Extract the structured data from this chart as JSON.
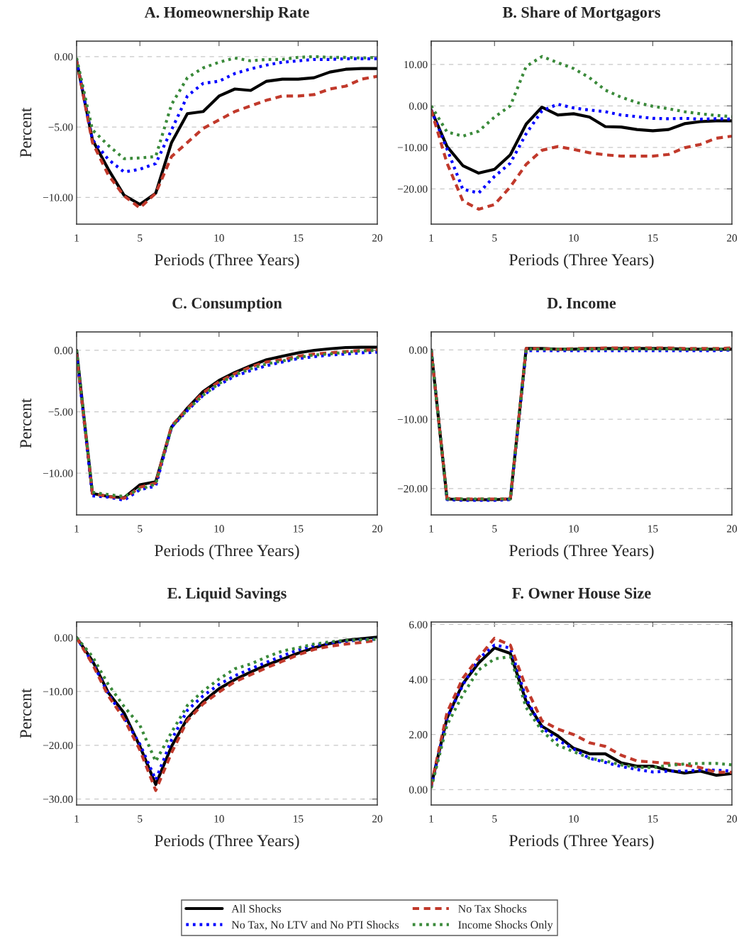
{
  "chart_data": [
    {
      "type": "line",
      "title": "A. Homeownership Rate",
      "xlabel": "Periods (Three Years)",
      "ylabel": "Percent",
      "x": [
        1,
        2,
        3,
        4,
        5,
        6,
        7,
        8,
        9,
        10,
        11,
        12,
        13,
        14,
        15,
        16,
        17,
        18,
        19,
        20
      ],
      "xlim": [
        1,
        20
      ],
      "xticks": [
        1,
        5,
        10,
        15,
        20
      ],
      "ylim": [
        -11.9,
        1.1
      ],
      "yticks": [
        {
          "value": -10,
          "label": "−10.00"
        },
        {
          "value": -5,
          "label": "−5.00"
        },
        {
          "value": 0,
          "label": "0.00"
        }
      ],
      "grid": "y",
      "legend": "bottom",
      "series": [
        {
          "name": "All Shocks",
          "color": "#000000",
          "line_style": "solid",
          "values": [
            -0.3,
            -5.9,
            -8.0,
            -9.85,
            -10.5,
            -9.7,
            -6.1,
            -4.05,
            -3.9,
            -2.8,
            -2.3,
            -2.4,
            -1.75,
            -1.6,
            -1.6,
            -1.5,
            -1.1,
            -0.9,
            -0.85,
            -0.85
          ]
        },
        {
          "name": "No Tax, No LTV and No PTI Shocks",
          "color": "#0000ff",
          "line_style": "dotted",
          "values": [
            -0.3,
            -5.9,
            -7.3,
            -8.2,
            -8.0,
            -7.6,
            -5.2,
            -2.8,
            -1.9,
            -1.75,
            -1.2,
            -0.87,
            -0.6,
            -0.4,
            -0.3,
            -0.2,
            -0.2,
            -0.15,
            -0.15,
            -0.15
          ]
        },
        {
          "name": "No Tax Shocks",
          "color": "#c1392b",
          "line_style": "dashed",
          "values": [
            -0.3,
            -6.1,
            -8.4,
            -9.9,
            -10.75,
            -9.7,
            -7.1,
            -6.1,
            -5.1,
            -4.5,
            -3.9,
            -3.5,
            -3.1,
            -2.8,
            -2.8,
            -2.7,
            -2.3,
            -2.1,
            -1.6,
            -1.4
          ]
        },
        {
          "name": "Income Shocks Only",
          "color": "#3a8a3a",
          "line_style": "dotted",
          "values": [
            -0.1,
            -5.2,
            -6.3,
            -7.25,
            -7.2,
            -7.1,
            -3.4,
            -1.5,
            -0.8,
            -0.4,
            -0.1,
            -0.3,
            -0.2,
            -0.2,
            -0.05,
            0.0,
            -0.05,
            -0.05,
            -0.1,
            -0.05
          ]
        }
      ]
    },
    {
      "type": "line",
      "title": "B. Share of Mortgagors",
      "xlabel": "Periods (Three Years)",
      "x": [
        1,
        2,
        3,
        4,
        5,
        6,
        7,
        8,
        9,
        10,
        11,
        12,
        13,
        14,
        15,
        16,
        17,
        18,
        19,
        20
      ],
      "xlim": [
        1,
        20
      ],
      "xticks": [
        1,
        5,
        10,
        15,
        20
      ],
      "ylim": [
        -28.5,
        15.6
      ],
      "yticks": [
        {
          "value": -20,
          "label": "−20.00"
        },
        {
          "value": -10,
          "label": "−10.00"
        },
        {
          "value": 0,
          "label": "0.00"
        },
        {
          "value": 10,
          "label": "10.00"
        }
      ],
      "grid": "y",
      "series": [
        {
          "color": "#000000",
          "line_style": "solid",
          "values": [
            -1,
            -9.8,
            -14.4,
            -16.2,
            -15.3,
            -11.8,
            -4.4,
            -0.3,
            -2.2,
            -1.9,
            -2.7,
            -5.0,
            -5.1,
            -5.7,
            -6.0,
            -5.7,
            -4.3,
            -3.8,
            -3.6,
            -3.6
          ]
        },
        {
          "color": "#0000ff",
          "line_style": "dotted",
          "values": [
            -1,
            -10.4,
            -20.1,
            -21.0,
            -17.0,
            -13.8,
            -6.7,
            -1.2,
            0.4,
            -0.5,
            -1.0,
            -1.4,
            -2.2,
            -2.6,
            -3.0,
            -3.1,
            -3.0,
            -3.2,
            -3.1,
            -3.2
          ]
        },
        {
          "color": "#c1392b",
          "line_style": "dashed",
          "values": [
            -1,
            -13.8,
            -22.9,
            -24.9,
            -23.8,
            -19.5,
            -14.1,
            -10.7,
            -9.8,
            -10.5,
            -11.3,
            -11.8,
            -12.1,
            -12.1,
            -12.1,
            -11.7,
            -10.1,
            -9.3,
            -7.8,
            -7.3
          ]
        },
        {
          "color": "#3a8a3a",
          "line_style": "dotted",
          "values": [
            0,
            -6.3,
            -7.3,
            -6.1,
            -2.7,
            0,
            9.5,
            11.9,
            10.4,
            9.0,
            6.8,
            3.8,
            2.1,
            0.8,
            -0.1,
            -0.7,
            -1.4,
            -1.9,
            -2.3,
            -2.6
          ]
        }
      ]
    },
    {
      "type": "line",
      "title": "C. Consumption",
      "xlabel": "Periods (Three Years)",
      "ylabel": "Percent",
      "x": [
        1,
        2,
        3,
        4,
        5,
        6,
        7,
        8,
        9,
        10,
        11,
        12,
        13,
        14,
        15,
        16,
        17,
        18,
        19,
        20
      ],
      "xlim": [
        1,
        20
      ],
      "xticks": [
        1,
        5,
        10,
        15,
        20
      ],
      "ylim": [
        -13.4,
        1.5
      ],
      "yticks": [
        {
          "value": -10,
          "label": "−10.00"
        },
        {
          "value": -5,
          "label": "−5.00"
        },
        {
          "value": 0,
          "label": "0.00"
        }
      ],
      "grid": "y",
      "series": [
        {
          "color": "#000000",
          "line_style": "solid",
          "values": [
            0,
            -11.65,
            -11.9,
            -12.0,
            -10.95,
            -10.7,
            -6.25,
            -4.7,
            -3.35,
            -2.45,
            -1.8,
            -1.25,
            -0.77,
            -0.48,
            -0.2,
            0.0,
            0.13,
            0.23,
            0.25,
            0.25
          ]
        },
        {
          "color": "#0000ff",
          "line_style": "dotted",
          "values": [
            -0.3,
            -11.85,
            -11.95,
            -12.2,
            -11.35,
            -11.05,
            -6.25,
            -4.9,
            -3.65,
            -2.8,
            -2.1,
            -1.65,
            -1.25,
            -0.95,
            -0.67,
            -0.52,
            -0.38,
            -0.3,
            -0.2,
            -0.15
          ]
        },
        {
          "color": "#c1392b",
          "line_style": "dashed",
          "values": [
            -0.3,
            -11.65,
            -11.9,
            -12.05,
            -11.15,
            -10.8,
            -6.15,
            -4.75,
            -3.45,
            -2.55,
            -1.9,
            -1.35,
            -0.95,
            -0.75,
            -0.48,
            -0.3,
            -0.2,
            -0.1,
            0.0,
            0.05
          ]
        },
        {
          "color": "#3a8a3a",
          "line_style": "dotted",
          "values": [
            0,
            -11.55,
            -11.75,
            -11.9,
            -11.3,
            -10.9,
            -6.25,
            -4.85,
            -3.65,
            -2.7,
            -2.0,
            -1.5,
            -1.1,
            -0.87,
            -0.58,
            -0.38,
            -0.3,
            -0.15,
            -0.05,
            0.0
          ]
        }
      ]
    },
    {
      "type": "line",
      "title": "D. Income",
      "xlabel": "Periods (Three Years)",
      "x": [
        1,
        2,
        3,
        4,
        5,
        6,
        7,
        8,
        9,
        10,
        11,
        12,
        13,
        14,
        15,
        16,
        17,
        18,
        19,
        20
      ],
      "xlim": [
        1,
        20
      ],
      "xticks": [
        1,
        5,
        10,
        15,
        20
      ],
      "ylim": [
        -23.8,
        2.6
      ],
      "yticks": [
        {
          "value": -20,
          "label": "−20.00"
        },
        {
          "value": -10,
          "label": "−10.00"
        },
        {
          "value": 0,
          "label": "0.00"
        }
      ],
      "grid": "y",
      "series": [
        {
          "color": "#000000",
          "line_style": "solid",
          "values": [
            0,
            -21.5,
            -21.6,
            -21.6,
            -21.6,
            -21.5,
            0.2,
            0.2,
            0.1,
            0.1,
            0.2,
            0.2,
            0.2,
            0.2,
            0.2,
            0.2,
            0.1,
            0.1,
            0.1,
            0.1
          ]
        },
        {
          "color": "#0000ff",
          "line_style": "dotted",
          "values": [
            0,
            -21.6,
            -21.7,
            -21.7,
            -21.7,
            -21.6,
            -0.1,
            -0.1,
            -0.1,
            -0.1,
            -0.1,
            -0.1,
            -0.1,
            -0.1,
            -0.1,
            -0.1,
            -0.1,
            -0.1,
            -0.1,
            0.0
          ]
        },
        {
          "color": "#c1392b",
          "line_style": "dashed",
          "values": [
            0,
            -21.4,
            -21.5,
            -21.5,
            -21.5,
            -21.5,
            0.2,
            0.2,
            0.1,
            0.2,
            0.2,
            0.3,
            0.3,
            0.3,
            0.3,
            0.3,
            0.2,
            0.2,
            0.2,
            0.3
          ]
        },
        {
          "color": "#3a8a3a",
          "line_style": "dotted",
          "values": [
            0,
            -21.5,
            -21.5,
            -21.5,
            -21.5,
            -21.5,
            0.1,
            0.1,
            0.1,
            0.1,
            0.1,
            0.1,
            0.1,
            0.1,
            0.1,
            0.1,
            0.1,
            0.1,
            0.1,
            0.1
          ]
        }
      ]
    },
    {
      "type": "line",
      "title": "E. Liquid Savings",
      "xlabel": "Periods (Three Years)",
      "ylabel": "Percent",
      "x": [
        1,
        2,
        3,
        4,
        5,
        6,
        7,
        8,
        9,
        10,
        11,
        12,
        13,
        14,
        15,
        16,
        17,
        18,
        19,
        20
      ],
      "xlim": [
        1,
        20
      ],
      "xticks": [
        1,
        5,
        10,
        15,
        20
      ],
      "ylim": [
        -31.1,
        2.9
      ],
      "yticks": [
        {
          "value": -30,
          "label": "−30.00"
        },
        {
          "value": -20,
          "label": "−20.00"
        },
        {
          "value": -10,
          "label": "−10.00"
        },
        {
          "value": 0,
          "label": "0.00"
        }
      ],
      "grid": "y",
      "series": [
        {
          "color": "#000000",
          "line_style": "solid",
          "values": [
            0,
            -4.3,
            -10.2,
            -14.0,
            -20.2,
            -27.3,
            -20.2,
            -15.0,
            -11.9,
            -9.5,
            -7.8,
            -6.4,
            -5.1,
            -4.0,
            -2.9,
            -1.9,
            -1.1,
            -0.5,
            -0.2,
            0.1
          ]
        },
        {
          "color": "#0000ff",
          "line_style": "dotted",
          "values": [
            0,
            -4.6,
            -10.4,
            -14.9,
            -19.8,
            -26.4,
            -19.0,
            -13.5,
            -10.8,
            -8.7,
            -7.1,
            -5.8,
            -4.6,
            -3.4,
            -2.3,
            -1.5,
            -1.0,
            -0.7,
            -0.4,
            -0.3
          ]
        },
        {
          "color": "#c1392b",
          "line_style": "dashed",
          "values": [
            0,
            -4.9,
            -10.8,
            -15.1,
            -20.9,
            -28.4,
            -21.4,
            -15.4,
            -12.3,
            -10.1,
            -8.2,
            -6.9,
            -5.6,
            -4.4,
            -3.2,
            -2.2,
            -1.6,
            -1.2,
            -0.9,
            -0.5
          ]
        },
        {
          "color": "#3a8a3a",
          "line_style": "dotted",
          "values": [
            0,
            -3.5,
            -8.7,
            -12.8,
            -16.3,
            -23.0,
            -17.6,
            -12.6,
            -9.9,
            -7.7,
            -5.8,
            -4.9,
            -3.6,
            -2.5,
            -1.9,
            -1.2,
            -0.8,
            -0.5,
            -0.4,
            -0.3
          ]
        }
      ]
    },
    {
      "type": "line",
      "title": "F. Owner House Size",
      "xlabel": "Periods (Three Years)",
      "x": [
        1,
        2,
        3,
        4,
        5,
        6,
        7,
        8,
        9,
        10,
        11,
        12,
        13,
        14,
        15,
        16,
        17,
        18,
        19,
        20
      ],
      "xlim": [
        1,
        20
      ],
      "xticks": [
        1,
        5,
        10,
        15,
        20
      ],
      "ylim": [
        -0.56,
        6.09
      ],
      "yticks": [
        {
          "value": 0,
          "label": "0.00"
        },
        {
          "value": 2,
          "label": "2.00"
        },
        {
          "value": 4,
          "label": "4.00"
        },
        {
          "value": 6,
          "label": "6.00"
        }
      ],
      "grid": "y",
      "series": [
        {
          "color": "#000000",
          "line_style": "solid",
          "values": [
            0.15,
            2.6,
            3.85,
            4.6,
            5.15,
            4.95,
            3.2,
            2.3,
            1.95,
            1.5,
            1.3,
            1.3,
            0.97,
            0.85,
            0.85,
            0.7,
            0.6,
            0.67,
            0.52,
            0.58
          ]
        },
        {
          "color": "#0000ff",
          "line_style": "dotted",
          "values": [
            0.1,
            2.6,
            3.8,
            4.75,
            5.25,
            5.15,
            3.3,
            2.25,
            1.8,
            1.48,
            1.14,
            0.99,
            0.84,
            0.73,
            0.64,
            0.67,
            0.67,
            0.71,
            0.71,
            0.67
          ]
        },
        {
          "color": "#c1392b",
          "line_style": "dashed",
          "values": [
            0.15,
            2.8,
            4.05,
            4.8,
            5.5,
            5.25,
            3.7,
            2.5,
            2.2,
            2.0,
            1.7,
            1.57,
            1.25,
            1.04,
            1.0,
            0.95,
            0.9,
            0.8,
            0.63,
            0.63
          ]
        },
        {
          "color": "#3a8a3a",
          "line_style": "dotted",
          "values": [
            0.05,
            2.35,
            3.45,
            4.35,
            4.75,
            4.83,
            2.98,
            2.13,
            1.61,
            1.38,
            1.14,
            1.04,
            0.9,
            0.81,
            0.8,
            0.88,
            0.93,
            0.95,
            0.95,
            0.9
          ]
        }
      ]
    }
  ]
}
